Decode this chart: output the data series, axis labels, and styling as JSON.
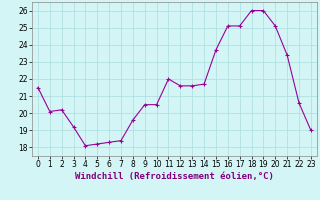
{
  "x": [
    0,
    1,
    2,
    3,
    4,
    5,
    6,
    7,
    8,
    9,
    10,
    11,
    12,
    13,
    14,
    15,
    16,
    17,
    18,
    19,
    20,
    21,
    22,
    23
  ],
  "y": [
    21.5,
    20.1,
    20.2,
    19.2,
    18.1,
    18.2,
    18.3,
    18.4,
    19.6,
    20.5,
    20.5,
    22.0,
    21.6,
    21.6,
    21.7,
    23.7,
    25.1,
    25.1,
    26.0,
    26.0,
    25.1,
    23.4,
    20.6,
    19.0
  ],
  "line_color": "#990099",
  "marker": "+",
  "marker_size": 4,
  "bg_color": "#d4f5f5",
  "grid_color": "#aadddd",
  "xlabel": "Windchill (Refroidissement éolien,°C)",
  "ylabel": "",
  "ylim": [
    17.5,
    26.5
  ],
  "xlim": [
    -0.5,
    23.5
  ],
  "yticks": [
    18,
    19,
    20,
    21,
    22,
    23,
    24,
    25,
    26
  ],
  "xticks": [
    0,
    1,
    2,
    3,
    4,
    5,
    6,
    7,
    8,
    9,
    10,
    11,
    12,
    13,
    14,
    15,
    16,
    17,
    18,
    19,
    20,
    21,
    22,
    23
  ],
  "tick_label_size": 5.5,
  "xlabel_size": 6.5
}
